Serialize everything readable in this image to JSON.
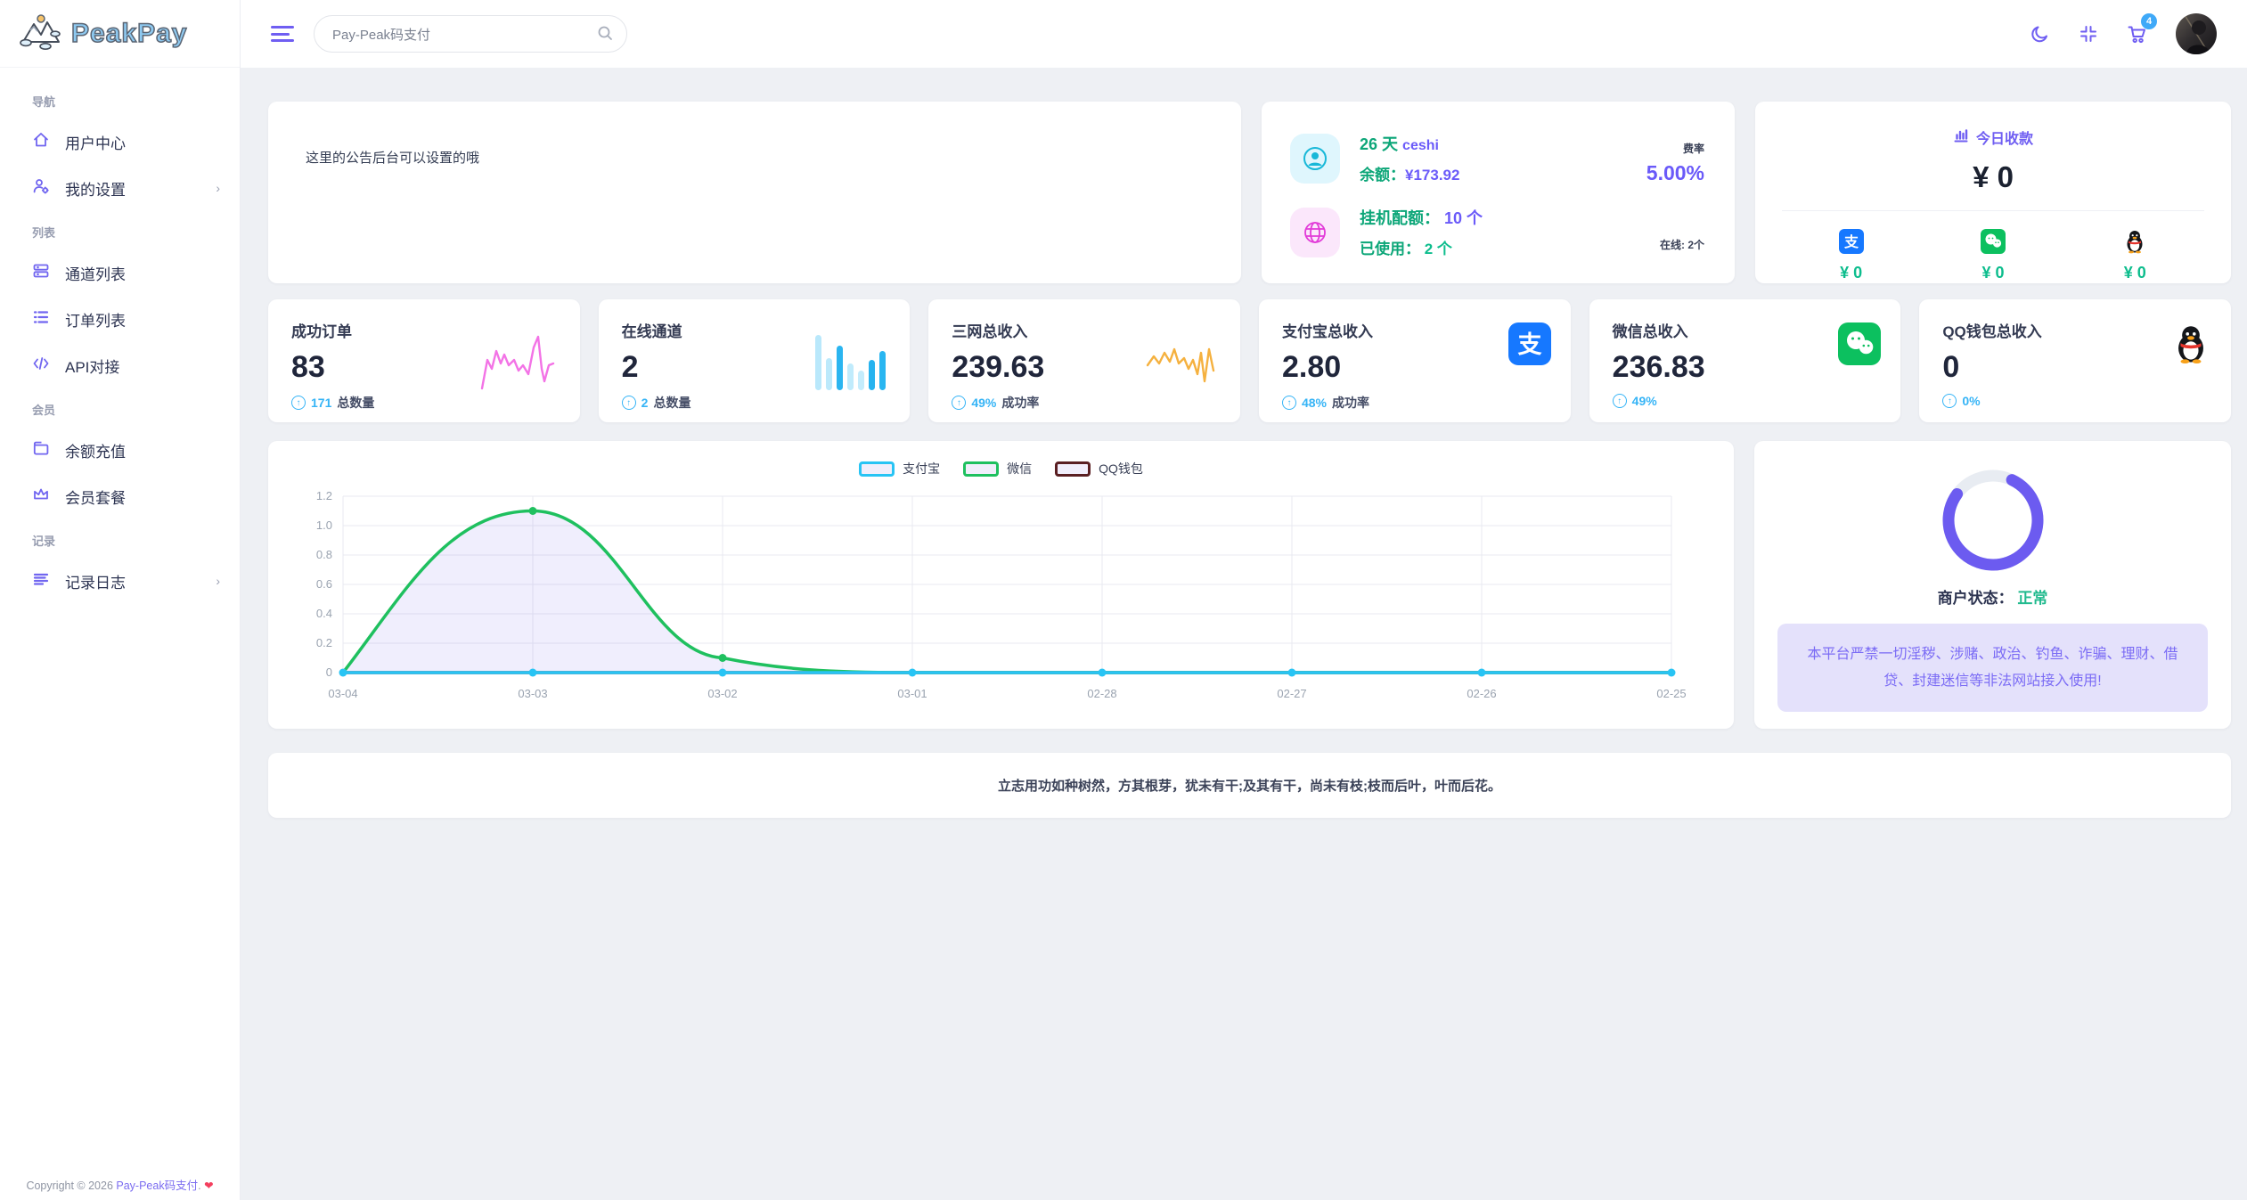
{
  "brand": {
    "name": "PeakPay"
  },
  "sidebar": {
    "sections": [
      {
        "label": "导航",
        "items": [
          {
            "label": "用户中心",
            "icon": "home-icon"
          },
          {
            "label": "我的设置",
            "icon": "user-gear-icon",
            "chevron": "›"
          }
        ]
      },
      {
        "label": "列表",
        "items": [
          {
            "label": "通道列表",
            "icon": "channels-icon"
          },
          {
            "label": "订单列表",
            "icon": "orders-icon"
          },
          {
            "label": "API对接",
            "icon": "code-icon"
          }
        ]
      },
      {
        "label": "会员",
        "items": [
          {
            "label": "余额充值",
            "icon": "wallet-icon"
          },
          {
            "label": "会员套餐",
            "icon": "crown-icon"
          }
        ]
      },
      {
        "label": "记录",
        "items": [
          {
            "label": "记录日志",
            "icon": "logs-icon",
            "chevron": "›"
          }
        ]
      }
    ],
    "copyright": {
      "prefix": "Copyright © 2026 ",
      "link": "Pay-Peak码支付",
      "suffix": ".",
      "heart": "❤"
    }
  },
  "header": {
    "search": {
      "value": "Pay-Peak码支付"
    },
    "cart_badge": "4"
  },
  "announcement": {
    "text": "这里的公告后台可以设置的哦"
  },
  "account": {
    "days_value": "26 天",
    "username": "ceshi",
    "balance_label": "余额：",
    "balance_value": "¥173.92",
    "rate_label": "费率",
    "rate_value": "5.00%",
    "quota_label": "挂机配额：",
    "quota_value": "10 个",
    "used_label": "已使用：",
    "used_value": "2 个",
    "online_label": "在线: 2个"
  },
  "today": {
    "title": "今日收款",
    "total": "¥ 0",
    "channels": [
      {
        "name": "alipay",
        "amount": "¥ 0"
      },
      {
        "name": "wechat",
        "amount": "¥ 0"
      },
      {
        "name": "qq",
        "amount": "¥ 0"
      }
    ]
  },
  "stats": [
    {
      "title": "成功订单",
      "value": "83",
      "sub_value": "171",
      "sub_label": "总数量"
    },
    {
      "title": "在线通道",
      "value": "2",
      "sub_value": "2",
      "sub_label": "总数量"
    },
    {
      "title": "三网总收入",
      "value": "239.63",
      "sub_value": "49%",
      "sub_label": "成功率"
    },
    {
      "title": "支付宝总收入",
      "value": "2.80",
      "sub_value": "48%",
      "sub_label": "成功率"
    },
    {
      "title": "微信总收入",
      "value": "236.83",
      "sub_value": "49%",
      "sub_label": ""
    },
    {
      "title": "QQ钱包总收入",
      "value": "0",
      "sub_value": "0%",
      "sub_label": ""
    }
  ],
  "chart_data": {
    "type": "line",
    "x": [
      "03-04",
      "03-03",
      "03-02",
      "03-01",
      "02-28",
      "02-27",
      "02-26",
      "02-25"
    ],
    "series": [
      {
        "name": "支付宝",
        "color": "#28c4f4",
        "values": [
          0,
          0,
          0,
          0,
          0,
          0,
          0,
          0
        ]
      },
      {
        "name": "微信",
        "color": "#1fc05f",
        "values": [
          0,
          1.1,
          0.1,
          0,
          0,
          0,
          0,
          0
        ],
        "area": true,
        "smooth": true
      },
      {
        "name": "QQ钱包",
        "color": "#5a1f22",
        "values": [
          0,
          0,
          0,
          0,
          0,
          0,
          0,
          0
        ]
      }
    ],
    "ylim": [
      0,
      1.2
    ],
    "yticks": [
      "0",
      "0.2",
      "0.4",
      "0.6",
      "0.8",
      "1.0",
      "1.2"
    ],
    "legend_position": "top",
    "grid": true,
    "area_fill": "#6c5bf0"
  },
  "merchant": {
    "status_label": "商户状态：",
    "status_value": "正常",
    "warning": "本平台严禁一切淫秽、涉赌、政治、钓鱼、诈骗、理财、借贷、封建迷信等非法网站接入使用!"
  },
  "quote": {
    "text": "立志用功如种树然，方其根芽，犹未有干;及其有干，尚未有枝;枝而后叶，叶而后花。"
  },
  "colors": {
    "accent": "#6c5bf0",
    "icon_purple": "#7166f0",
    "green": "#0ca678",
    "teal": "#0dbd8d",
    "blue": "#36b4f6",
    "badge_blue": "#3fa9f8"
  }
}
